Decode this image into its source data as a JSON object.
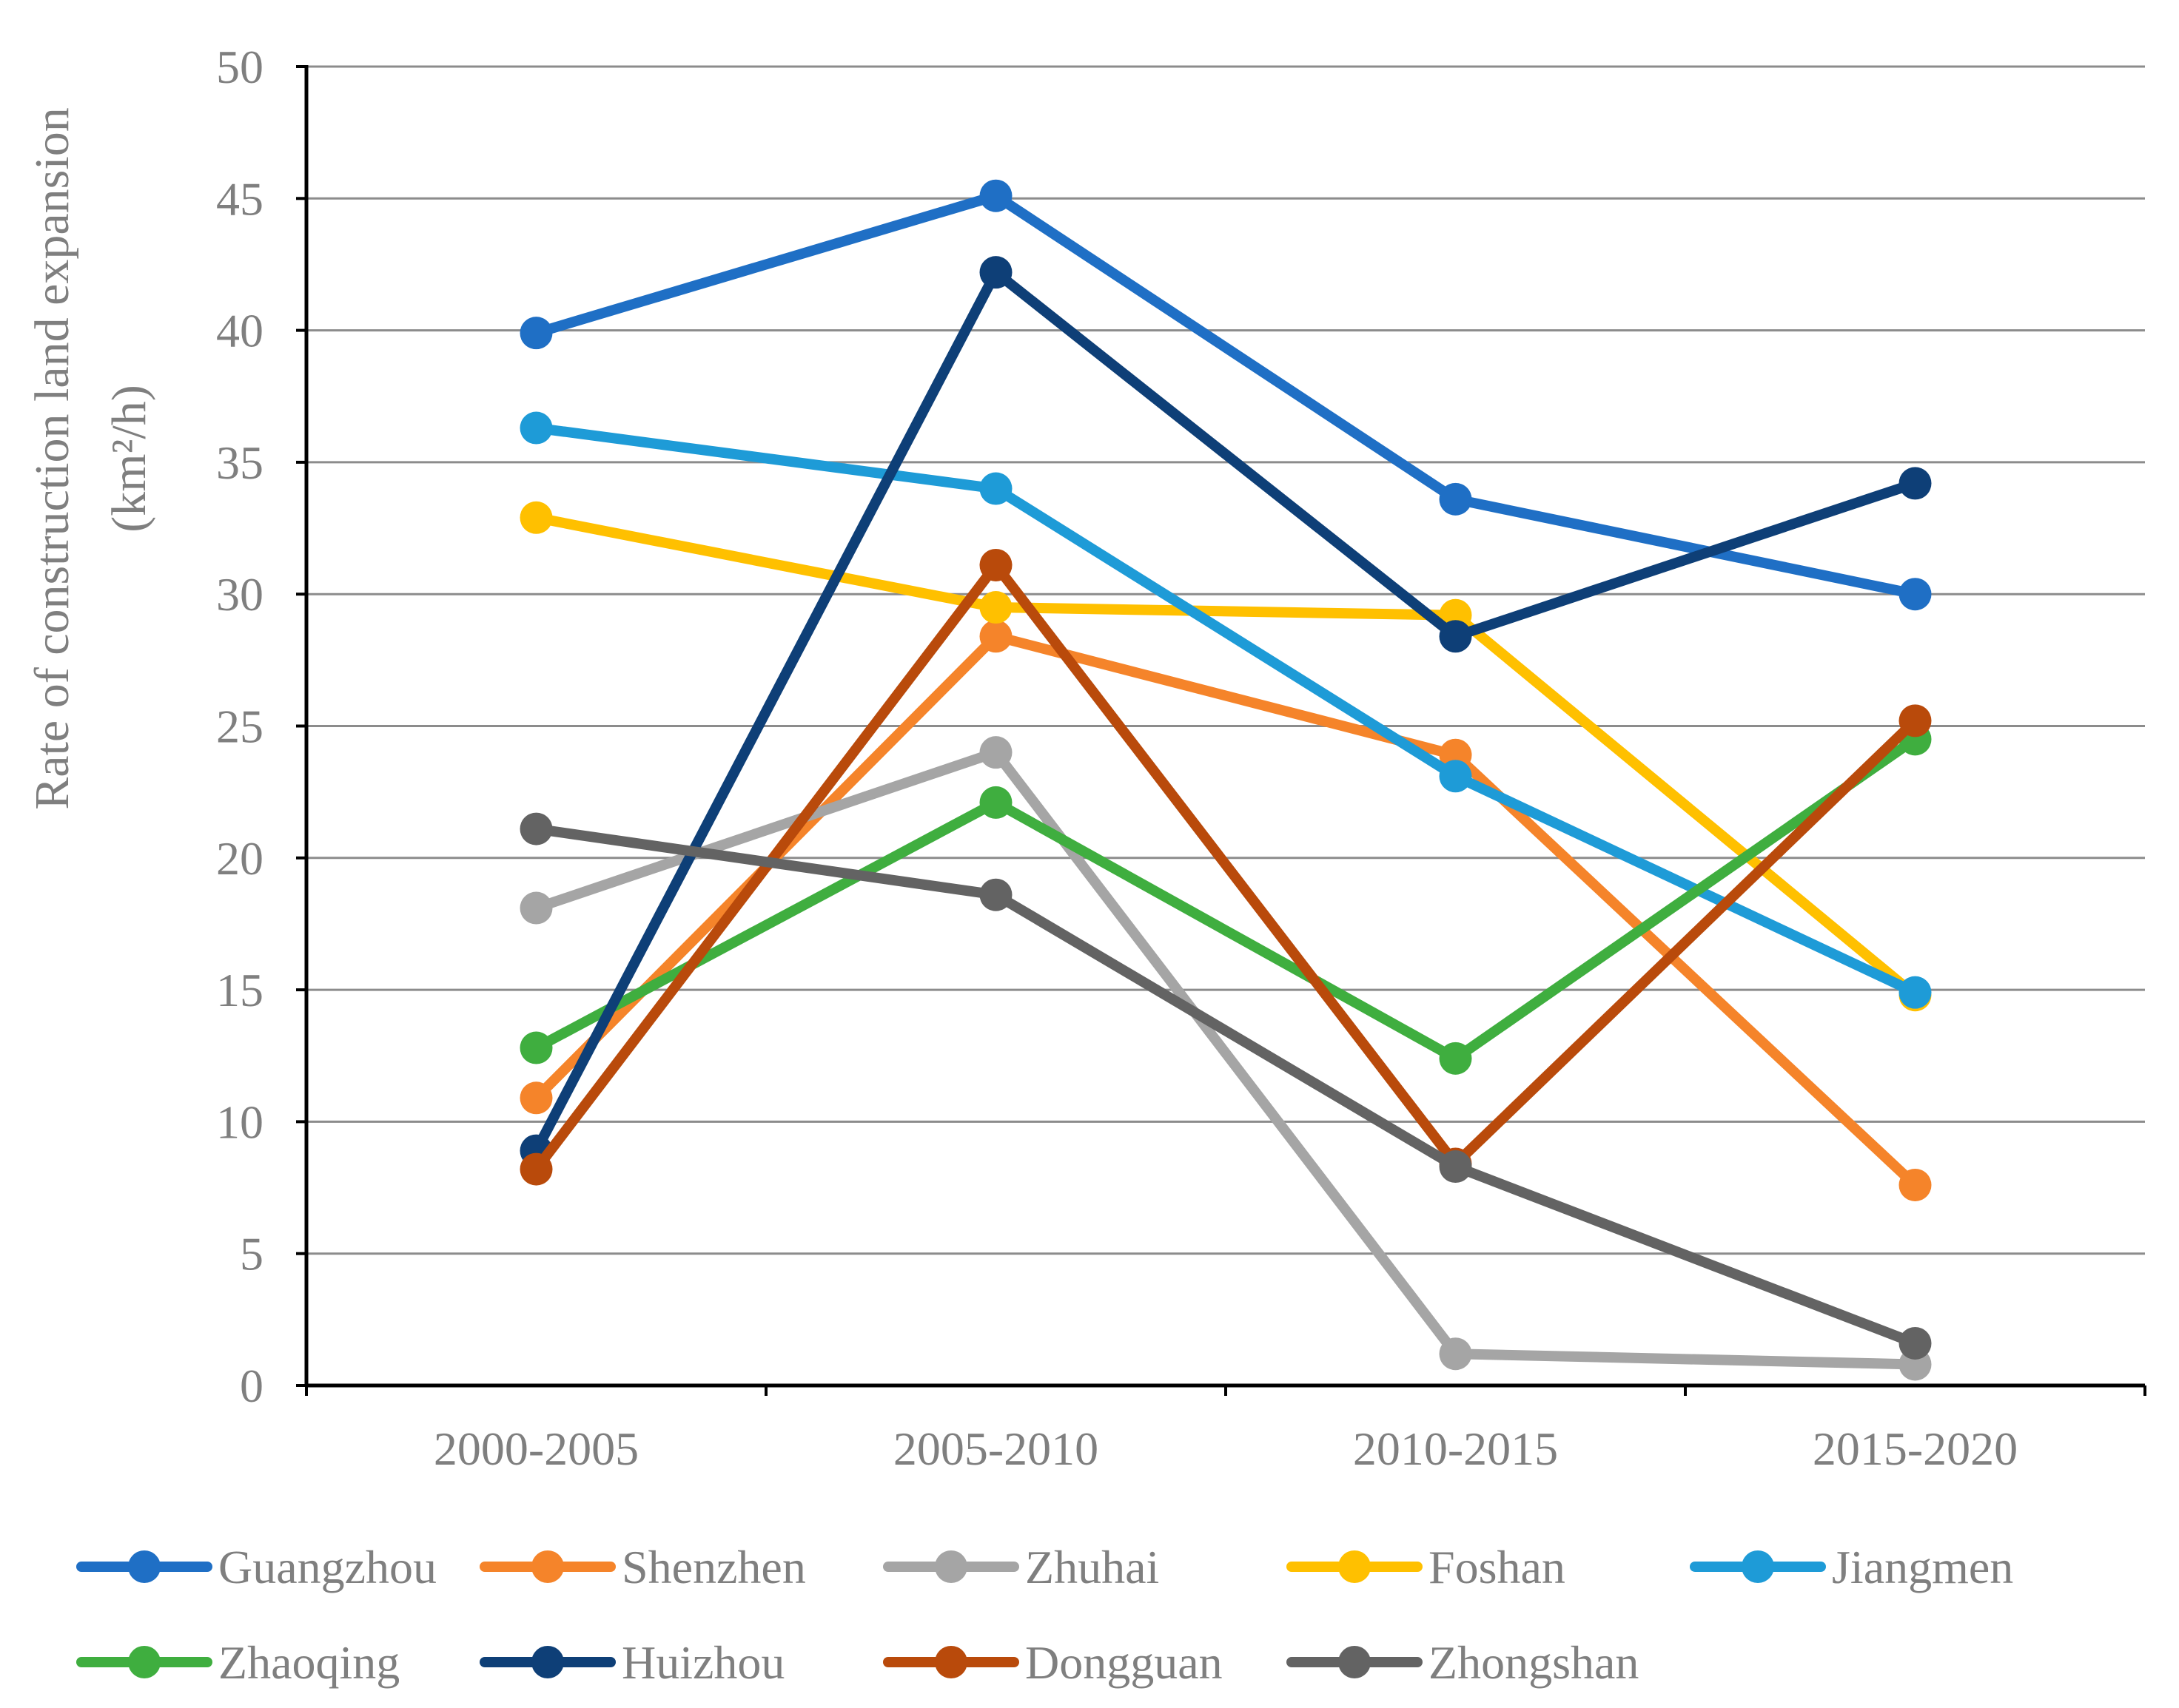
{
  "chart_data": {
    "type": "line",
    "title": "",
    "xlabel": "",
    "ylabel": "Rate of construction land expansion",
    "ylabel_unit": "(km²/h)",
    "ylim": [
      0,
      50
    ],
    "yticks": [
      0,
      5,
      10,
      15,
      20,
      25,
      30,
      35,
      40,
      45,
      50
    ],
    "grid": true,
    "legend_position": "bottom",
    "categories": [
      "2000-2005",
      "2005-2010",
      "2010-2015",
      "2015-2020"
    ],
    "series": [
      {
        "name": "Guangzhou",
        "color": "#1f6fc5",
        "values": [
          39.9,
          45.1,
          33.6,
          30.0
        ]
      },
      {
        "name": "Shenzhen",
        "color": "#f5842a",
        "values": [
          10.9,
          28.4,
          23.9,
          7.6
        ]
      },
      {
        "name": "Zhuhai",
        "color": "#a5a5a5",
        "values": [
          18.1,
          24.0,
          1.2,
          0.8
        ]
      },
      {
        "name": "Foshan",
        "color": "#ffc000",
        "values": [
          32.9,
          29.5,
          29.2,
          14.8
        ]
      },
      {
        "name": "Jiangmen",
        "color": "#1e9bd7",
        "values": [
          36.3,
          34.0,
          23.1,
          14.9
        ]
      },
      {
        "name": "Zhaoqing",
        "color": "#3fae3f",
        "values": [
          12.8,
          22.1,
          12.4,
          24.5
        ]
      },
      {
        "name": "Huizhou",
        "color": "#0e3f77",
        "values": [
          8.9,
          42.2,
          28.4,
          34.2
        ]
      },
      {
        "name": "Dongguan",
        "color": "#b94a0b",
        "values": [
          8.2,
          31.1,
          8.4,
          25.2
        ]
      },
      {
        "name": "Zhongshan",
        "color": "#636363",
        "values": [
          21.1,
          18.6,
          8.3,
          1.6
        ]
      }
    ]
  }
}
